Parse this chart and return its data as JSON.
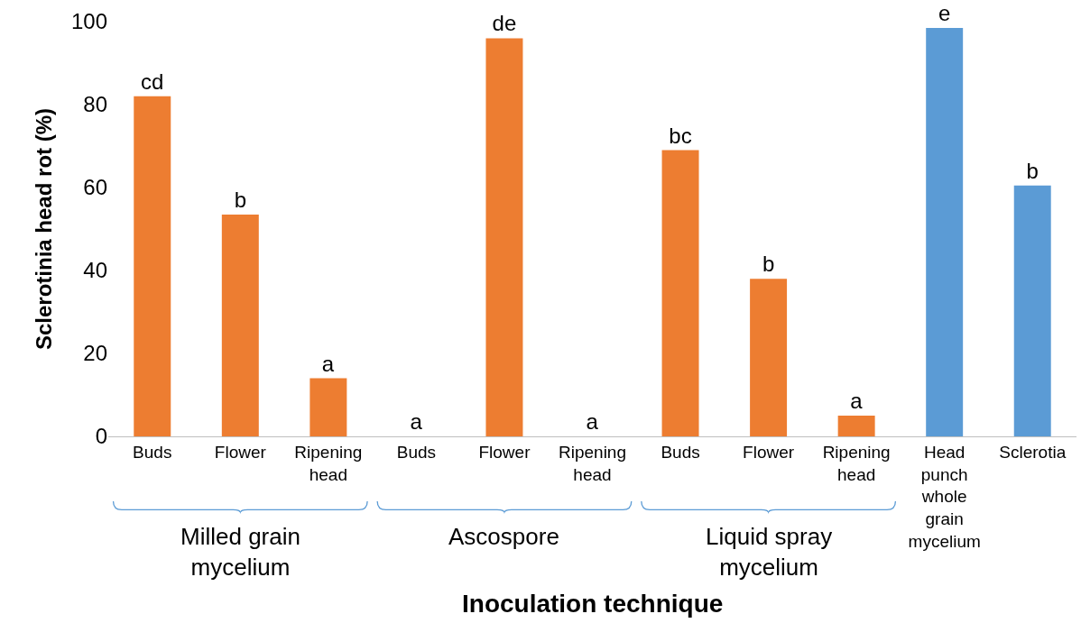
{
  "chart_data": {
    "type": "bar",
    "ylabel": "Sclerotinia head rot (%)",
    "xlabel": "Inoculation technique",
    "categories": [
      "Buds",
      "Flower",
      "Ripening head",
      "Buds",
      "Flower",
      "Ripening head",
      "Buds",
      "Flower",
      "Ripening head",
      "Head punch whole grain mycelium",
      "Sclerotia"
    ],
    "values": [
      82,
      53.5,
      14,
      0,
      96,
      0,
      69,
      38,
      5,
      98.5,
      60.5
    ],
    "colors": [
      "#ed7d31",
      "#ed7d31",
      "#ed7d31",
      "#ed7d31",
      "#ed7d31",
      "#ed7d31",
      "#ed7d31",
      "#ed7d31",
      "#ed7d31",
      "#5b9bd5",
      "#5b9bd5"
    ],
    "value_labels": [
      "cd",
      "b",
      "a",
      "a",
      "de",
      "a",
      "bc",
      "b",
      "a",
      "e",
      "b"
    ],
    "annotations": [
      "Milled grain mycelium",
      "Ascospore",
      "Liquid spray mycelium"
    ],
    "ylim": [
      0,
      100
    ],
    "yticks": [
      0,
      20,
      40,
      60,
      80,
      100
    ],
    "grid": false
  }
}
